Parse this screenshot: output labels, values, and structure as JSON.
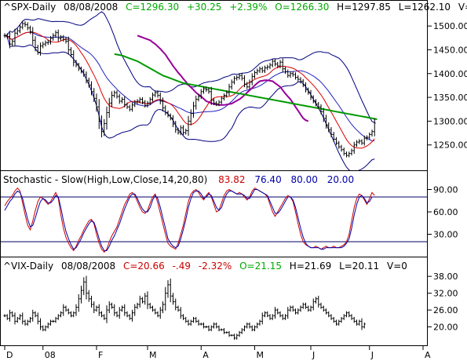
{
  "chart_data": [
    {
      "panel": "price",
      "type": "ohlc",
      "header": {
        "title": "^SPX-Daily",
        "date": "08/08/2008",
        "close_label": "C=1296.30",
        "change": "+30.25",
        "change_pct": "+2.39%",
        "open_label": "O=1266.30",
        "high_label": "H=1297.85",
        "low_label": "L=1262.10",
        "volume_label": "V=0"
      },
      "y_ticks": [
        "1500.00",
        "1450.00",
        "1400.00",
        "1350.00",
        "1300.00",
        "1250.00"
      ],
      "y_tick_values": [
        1500,
        1450,
        1400,
        1350,
        1300,
        1250
      ],
      "ylim": [
        1200,
        1525
      ],
      "closes": [
        1480,
        1478,
        1462,
        1468,
        1485,
        1490,
        1498,
        1505,
        1503,
        1496,
        1488,
        1470,
        1455,
        1445,
        1458,
        1462,
        1465,
        1466,
        1474,
        1480,
        1486,
        1474,
        1476,
        1472,
        1468,
        1450,
        1440,
        1424,
        1418,
        1410,
        1405,
        1398,
        1386,
        1376,
        1362,
        1348,
        1330,
        1300,
        1278,
        1295,
        1318,
        1338,
        1354,
        1360,
        1352,
        1342,
        1346,
        1335,
        1330,
        1325,
        1334,
        1340,
        1342,
        1346,
        1340,
        1333,
        1338,
        1346,
        1355,
        1360,
        1354,
        1342,
        1328,
        1318,
        1312,
        1306,
        1294,
        1282,
        1276,
        1286,
        1276,
        1280,
        1300,
        1316,
        1332,
        1346,
        1352,
        1362,
        1368,
        1366,
        1362,
        1344,
        1338,
        1336,
        1340,
        1348,
        1354,
        1360,
        1372,
        1382,
        1390,
        1392,
        1396,
        1390,
        1378,
        1372,
        1382,
        1394,
        1402,
        1406,
        1410,
        1406,
        1412,
        1414,
        1418,
        1426,
        1420,
        1416,
        1424,
        1410,
        1404,
        1396,
        1400,
        1398,
        1392,
        1388,
        1384,
        1376,
        1366,
        1360,
        1350,
        1342,
        1336,
        1330,
        1320,
        1306,
        1292,
        1282,
        1272,
        1262,
        1254,
        1246,
        1240,
        1232,
        1228,
        1232,
        1238,
        1250,
        1256,
        1258,
        1254,
        1264,
        1266,
        1272,
        1278,
        1296
      ],
      "ma_50": [
        1480,
        1478,
        1476,
        1474,
        1472,
        1470,
        1466,
        1462,
        1457,
        1452,
        1446,
        1440,
        1432,
        1424,
        1416,
        1409,
        1402,
        1396,
        1389,
        1383,
        1376,
        1371,
        1366,
        1360,
        1356,
        1352,
        1347,
        1342,
        1340,
        1338,
        1336,
        1335,
        1334,
        1334,
        1334,
        1335,
        1336,
        1337,
        1340,
        1343,
        1346,
        1350,
        1355,
        1360,
        1365,
        1370,
        1375,
        1380,
        1384,
        1385,
        1386,
        1386,
        1385,
        1384,
        1380,
        1376,
        1372,
        1365,
        1358,
        1352,
        1346,
        1338,
        1330,
        1322,
        1314,
        1306,
        1302,
        1300
      ],
      "ma_50_start": 52,
      "ma_200": [
        1441,
        1440,
        1439,
        1438,
        1436,
        1434,
        1432,
        1430,
        1428,
        1426,
        1423,
        1420,
        1417,
        1414,
        1411,
        1408,
        1405,
        1402,
        1399,
        1396,
        1394,
        1392,
        1390,
        1388,
        1386,
        1384,
        1382,
        1380,
        1379,
        1378,
        1377,
        1376,
        1375,
        1374,
        1373,
        1372,
        1371,
        1370,
        1369,
        1368,
        1367,
        1366,
        1365,
        1364,
        1363,
        1362,
        1361,
        1360,
        1359,
        1358,
        1357,
        1356,
        1355,
        1354,
        1353,
        1352,
        1351,
        1350,
        1349,
        1348,
        1347,
        1346,
        1345,
        1344,
        1343,
        1342,
        1341,
        1340,
        1339,
        1338,
        1337,
        1336,
        1335,
        1334,
        1333,
        1332,
        1331,
        1330,
        1329,
        1328,
        1327,
        1326,
        1325,
        1324,
        1323,
        1322,
        1321,
        1320,
        1319,
        1318,
        1317,
        1316,
        1315,
        1314,
        1313,
        1312,
        1311,
        1310,
        1309,
        1308,
        1307,
        1306,
        1305,
        1304
      ],
      "ma_200_start": 43
    },
    {
      "panel": "stochastic",
      "type": "line",
      "header": {
        "title": "Stochastic - Slow(High,Low,Close,14,20,80)",
        "k_value": "83.82",
        "d_value": "76.40",
        "upper_value": "80.00",
        "lower_value": "20.00"
      },
      "y_ticks": [
        "90.00",
        "60.00",
        "30.00"
      ],
      "y_tick_values": [
        90,
        60,
        30
      ],
      "ylim": [
        0,
        100
      ],
      "reference_lines": [
        80,
        20
      ],
      "series": [
        {
          "name": "",
          "color": "#cc0000",
          "values": [
            68,
            74,
            78,
            82,
            88,
            92,
            88,
            72,
            56,
            42,
            36,
            48,
            62,
            74,
            80,
            78,
            74,
            70,
            74,
            80,
            86,
            78,
            56,
            38,
            26,
            18,
            12,
            8,
            14,
            22,
            28,
            36,
            42,
            48,
            50,
            44,
            30,
            18,
            10,
            6,
            10,
            20,
            28,
            34,
            40,
            50,
            60,
            70,
            76,
            84,
            86,
            82,
            74,
            66,
            60,
            58,
            62,
            72,
            80,
            84,
            72,
            58,
            44,
            30,
            18,
            14,
            12,
            10,
            18,
            30,
            42,
            58,
            74,
            84,
            88,
            90,
            86,
            80,
            76,
            82,
            86,
            80,
            70,
            60,
            62,
            72,
            82,
            88,
            90,
            88,
            86,
            84,
            86,
            84,
            80,
            76,
            80,
            88,
            92,
            90,
            88,
            86,
            84,
            80,
            70,
            60,
            54,
            60,
            66,
            72,
            78,
            82,
            80,
            74,
            60,
            44,
            30,
            20,
            16,
            14,
            12,
            12,
            14,
            12,
            10,
            12,
            14,
            12,
            12,
            14,
            12,
            12,
            14,
            16,
            20,
            30,
            48,
            66,
            78,
            84,
            82,
            76,
            70,
            78,
            86,
            82
          ]
        },
        {
          "name": "",
          "color": "#0000aa",
          "values": [
            62,
            68,
            74,
            78,
            84,
            88,
            86,
            78,
            64,
            50,
            40,
            42,
            52,
            64,
            74,
            78,
            76,
            72,
            72,
            76,
            82,
            80,
            66,
            48,
            34,
            24,
            16,
            10,
            12,
            18,
            24,
            32,
            38,
            44,
            48,
            46,
            36,
            24,
            14,
            8,
            8,
            14,
            22,
            28,
            36,
            44,
            54,
            64,
            72,
            80,
            84,
            84,
            78,
            70,
            64,
            60,
            60,
            66,
            76,
            82,
            78,
            66,
            52,
            38,
            24,
            18,
            14,
            12,
            14,
            24,
            36,
            50,
            66,
            78,
            86,
            88,
            88,
            84,
            78,
            80,
            84,
            82,
            74,
            66,
            62,
            66,
            76,
            84,
            88,
            88,
            86,
            84,
            84,
            84,
            82,
            78,
            78,
            84,
            90,
            90,
            88,
            86,
            84,
            82,
            74,
            66,
            58,
            58,
            62,
            68,
            74,
            80,
            80,
            76,
            66,
            52,
            38,
            26,
            18,
            14,
            12,
            12,
            12,
            12,
            10,
            10,
            12,
            12,
            12,
            12,
            12,
            12,
            12,
            14,
            18,
            24,
            38,
            56,
            70,
            80,
            82,
            78,
            72,
            74,
            80,
            80
          ]
        }
      ]
    },
    {
      "panel": "vix",
      "type": "ohlc",
      "header": {
        "title": "^VIX-Daily",
        "date": "08/08/2008",
        "close_label": "C=20.66",
        "change": "-.49",
        "change_pct": "-2.32%",
        "open_label": "O=21.15",
        "high_label": "H=21.69",
        "low_label": "L=20.11",
        "volume_label": "V=0"
      },
      "y_ticks": [
        "38.00",
        "32.00",
        "26.00",
        "20.00"
      ],
      "y_tick_values": [
        38,
        32,
        26,
        20
      ],
      "ylim": [
        14,
        40
      ],
      "closes": [
        24,
        23,
        25,
        24,
        22,
        23,
        24,
        22,
        21,
        22,
        23,
        25,
        24,
        22,
        20,
        19,
        20,
        21,
        22,
        22,
        23,
        24,
        25,
        27,
        26,
        25,
        24,
        25,
        27,
        30,
        33,
        36,
        32,
        30,
        28,
        26,
        27,
        25,
        24,
        23,
        26,
        28,
        27,
        25,
        24,
        26,
        27,
        25,
        24,
        23,
        25,
        27,
        28,
        30,
        29,
        31,
        28,
        27,
        26,
        25,
        24,
        26,
        28,
        32,
        35,
        31,
        29,
        27,
        26,
        24,
        23,
        22,
        21,
        22,
        23,
        22,
        21,
        21,
        20,
        20,
        19,
        20,
        21,
        20,
        19,
        19,
        18,
        18,
        17,
        17,
        16,
        17,
        18,
        19,
        20,
        21,
        20,
        19,
        20,
        21,
        22,
        24,
        25,
        24,
        23,
        24,
        26,
        25,
        24,
        23,
        24,
        26,
        27,
        26,
        25,
        26,
        27,
        28,
        27,
        26,
        27,
        29,
        30,
        28,
        27,
        26,
        25,
        24,
        23,
        22,
        21,
        22,
        23,
        24,
        25,
        24,
        23,
        22,
        21,
        22,
        20,
        21
      ]
    }
  ],
  "x_axis": {
    "labels": [
      "D",
      "08",
      "F",
      "M",
      "A",
      "M",
      "J",
      "J",
      "A"
    ],
    "label_bar_indices": [
      0,
      15,
      36,
      56,
      77,
      98,
      120,
      143,
      164
    ]
  }
}
